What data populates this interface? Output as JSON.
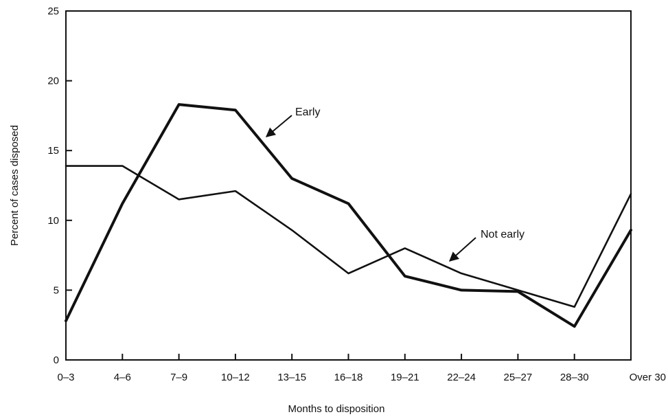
{
  "chart_data": {
    "type": "line",
    "xlabel": "Months to disposition",
    "ylabel": "Percent of cases disposed",
    "categories": [
      "0–3",
      "4–6",
      "7–9",
      "10–12",
      "13–15",
      "16–18",
      "19–21",
      "22–24",
      "25–27",
      "28–30",
      "Over 30"
    ],
    "ylim": [
      0,
      25
    ],
    "yticks": [
      0,
      5,
      10,
      15,
      20,
      25
    ],
    "grid": false,
    "series": [
      {
        "name": "Early",
        "values": [
          2.8,
          11.2,
          18.3,
          17.9,
          13.0,
          11.2,
          6.0,
          5.0,
          4.9,
          2.4,
          9.3
        ]
      },
      {
        "name": "Not early",
        "values": [
          13.9,
          13.9,
          11.5,
          12.1,
          9.3,
          6.2,
          8.0,
          6.2,
          5.0,
          3.8,
          11.9
        ]
      }
    ],
    "annotations": [
      {
        "text": "Early",
        "series": "Early"
      },
      {
        "text": "Not early",
        "series": "Not early"
      }
    ],
    "colors": {
      "line": "#111111",
      "axis": "#111111"
    }
  }
}
